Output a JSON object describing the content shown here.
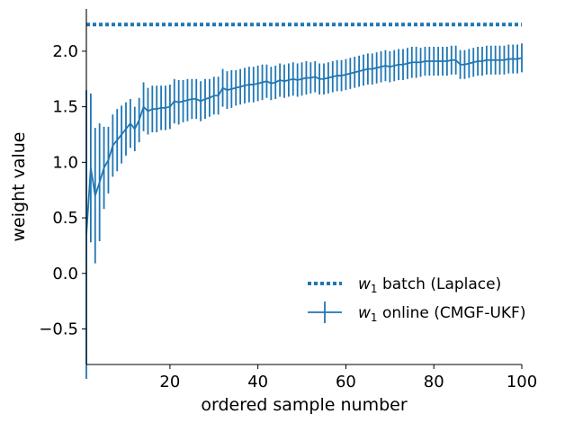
{
  "chart_data": {
    "type": "line",
    "title": "",
    "xlabel": "ordered sample number",
    "ylabel": "weight value",
    "xlim": [
      1,
      100
    ],
    "ylim": [
      -0.82,
      2.38
    ],
    "xticks": [
      20,
      40,
      60,
      80,
      100
    ],
    "xtick_labels": [
      "20",
      "40",
      "60",
      "80",
      "100"
    ],
    "yticks": [
      -0.5,
      0.0,
      0.5,
      1.0,
      1.5,
      2.0
    ],
    "ytick_labels": [
      "−0.5",
      "0.0",
      "0.5",
      "1.0",
      "1.5",
      "2.0"
    ],
    "grid": false,
    "legend_position": "lower-right",
    "color": "#1f77b4",
    "series": [
      {
        "name_prefix": "w",
        "name_subscript": "1",
        "name_suffix": " batch (Laplace)",
        "style": "dotted",
        "constant_y": 2.24
      },
      {
        "name_prefix": "w",
        "name_subscript": "1",
        "name_suffix": " online (CMGF-UKF)",
        "style": "solid-errorbar",
        "x": [
          1,
          2,
          3,
          4,
          5,
          6,
          7,
          8,
          9,
          10,
          11,
          12,
          13,
          14,
          15,
          16,
          17,
          18,
          19,
          20,
          21,
          22,
          23,
          24,
          25,
          26,
          27,
          28,
          29,
          30,
          31,
          32,
          33,
          34,
          35,
          36,
          37,
          38,
          39,
          40,
          41,
          42,
          43,
          44,
          45,
          46,
          47,
          48,
          49,
          50,
          51,
          52,
          53,
          54,
          55,
          56,
          57,
          58,
          59,
          60,
          61,
          62,
          63,
          64,
          65,
          66,
          67,
          68,
          69,
          70,
          71,
          72,
          73,
          74,
          75,
          76,
          77,
          78,
          79,
          80,
          81,
          82,
          83,
          84,
          85,
          86,
          87,
          88,
          89,
          90,
          91,
          92,
          93,
          94,
          95,
          96,
          97,
          98,
          99,
          100
        ],
        "y": [
          0.35,
          0.95,
          0.7,
          0.82,
          0.95,
          1.02,
          1.15,
          1.2,
          1.25,
          1.3,
          1.35,
          1.3,
          1.38,
          1.5,
          1.46,
          1.48,
          1.48,
          1.49,
          1.49,
          1.5,
          1.55,
          1.54,
          1.55,
          1.56,
          1.57,
          1.57,
          1.55,
          1.57,
          1.58,
          1.6,
          1.6,
          1.67,
          1.65,
          1.66,
          1.67,
          1.68,
          1.69,
          1.7,
          1.7,
          1.71,
          1.72,
          1.73,
          1.71,
          1.72,
          1.74,
          1.73,
          1.74,
          1.75,
          1.74,
          1.75,
          1.76,
          1.76,
          1.77,
          1.75,
          1.75,
          1.76,
          1.77,
          1.78,
          1.78,
          1.79,
          1.8,
          1.81,
          1.82,
          1.83,
          1.84,
          1.84,
          1.85,
          1.86,
          1.87,
          1.86,
          1.87,
          1.88,
          1.88,
          1.89,
          1.9,
          1.9,
          1.9,
          1.91,
          1.91,
          1.91,
          1.91,
          1.91,
          1.91,
          1.92,
          1.92,
          1.88,
          1.88,
          1.89,
          1.9,
          1.91,
          1.91,
          1.92,
          1.92,
          1.92,
          1.92,
          1.92,
          1.93,
          1.93,
          1.93,
          1.94
        ],
        "err": [
          1.3,
          0.67,
          0.61,
          0.53,
          0.37,
          0.3,
          0.28,
          0.28,
          0.26,
          0.24,
          0.22,
          0.2,
          0.2,
          0.22,
          0.21,
          0.21,
          0.21,
          0.2,
          0.2,
          0.2,
          0.2,
          0.2,
          0.19,
          0.19,
          0.18,
          0.18,
          0.18,
          0.18,
          0.17,
          0.17,
          0.17,
          0.17,
          0.17,
          0.17,
          0.16,
          0.16,
          0.16,
          0.16,
          0.16,
          0.16,
          0.16,
          0.15,
          0.15,
          0.15,
          0.15,
          0.15,
          0.15,
          0.15,
          0.15,
          0.15,
          0.15,
          0.14,
          0.14,
          0.14,
          0.14,
          0.14,
          0.14,
          0.14,
          0.14,
          0.14,
          0.14,
          0.14,
          0.14,
          0.14,
          0.14,
          0.14,
          0.14,
          0.14,
          0.14,
          0.14,
          0.14,
          0.14,
          0.14,
          0.14,
          0.14,
          0.14,
          0.13,
          0.13,
          0.13,
          0.13,
          0.13,
          0.13,
          0.13,
          0.13,
          0.13,
          0.13,
          0.13,
          0.13,
          0.13,
          0.13,
          0.13,
          0.13,
          0.13,
          0.13,
          0.13,
          0.13,
          0.13,
          0.13,
          0.13,
          0.13
        ]
      }
    ]
  }
}
